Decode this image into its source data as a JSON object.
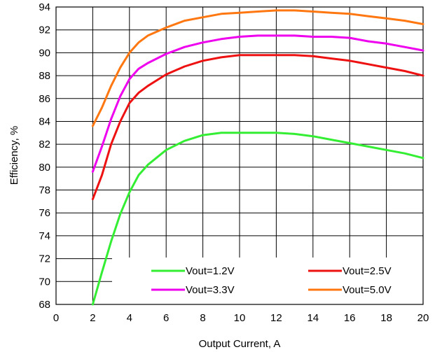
{
  "chart_data": {
    "type": "line",
    "xlabel": "Output Current, A",
    "ylabel": "Efficiency, %",
    "xlim": [
      0,
      20
    ],
    "ylim": [
      68,
      94
    ],
    "x_ticks": [
      "0",
      "2",
      "4",
      "6",
      "8",
      "10",
      "12",
      "14",
      "16",
      "18",
      "20"
    ],
    "y_ticks": [
      "68",
      "70",
      "72",
      "74",
      "76",
      "78",
      "80",
      "82",
      "84",
      "86",
      "88",
      "90",
      "92",
      "94"
    ],
    "grid": true,
    "legend_position": "bottom-right",
    "series": [
      {
        "name": "Vout=1.2V",
        "color": "#33ee33",
        "x": [
          2,
          2.5,
          3,
          3.5,
          4,
          4.5,
          5,
          6,
          7,
          8,
          9,
          10,
          11,
          12,
          13,
          14,
          15,
          16,
          17,
          18,
          19,
          20
        ],
        "y": [
          68.0,
          70.8,
          73.5,
          75.9,
          77.8,
          79.3,
          80.2,
          81.5,
          82.3,
          82.8,
          83.0,
          83.0,
          83.0,
          83.0,
          82.9,
          82.7,
          82.4,
          82.1,
          81.8,
          81.5,
          81.2,
          80.8
        ]
      },
      {
        "name": "Vout=2.5V",
        "color": "#ee1111",
        "x": [
          2,
          2.5,
          3,
          3.5,
          4,
          4.5,
          5,
          6,
          7,
          8,
          9,
          10,
          11,
          12,
          13,
          14,
          15,
          16,
          17,
          18,
          19,
          20
        ],
        "y": [
          77.2,
          79.3,
          82.0,
          84.0,
          85.6,
          86.5,
          87.1,
          88.1,
          88.8,
          89.3,
          89.6,
          89.8,
          89.8,
          89.8,
          89.8,
          89.7,
          89.5,
          89.3,
          89.0,
          88.7,
          88.4,
          88.0
        ]
      },
      {
        "name": "Vout=3.3V",
        "color": "#ee00ee",
        "x": [
          2,
          2.5,
          3,
          3.5,
          4,
          4.5,
          5,
          6,
          7,
          8,
          9,
          10,
          11,
          12,
          13,
          14,
          15,
          16,
          17,
          18,
          19,
          20
        ],
        "y": [
          79.6,
          81.8,
          84.2,
          86.2,
          87.7,
          88.6,
          89.1,
          89.9,
          90.5,
          90.9,
          91.2,
          91.4,
          91.5,
          91.5,
          91.5,
          91.4,
          91.4,
          91.3,
          91.0,
          90.8,
          90.5,
          90.2
        ]
      },
      {
        "name": "Vout=5.0V",
        "color": "#ff7711",
        "x": [
          2,
          2.5,
          3,
          3.5,
          4,
          4.5,
          5,
          6,
          7,
          8,
          9,
          10,
          11,
          12,
          13,
          14,
          15,
          16,
          17,
          18,
          19,
          20
        ],
        "y": [
          83.6,
          85.2,
          87.1,
          88.7,
          90.0,
          90.9,
          91.5,
          92.2,
          92.8,
          93.1,
          93.4,
          93.5,
          93.6,
          93.7,
          93.7,
          93.6,
          93.5,
          93.4,
          93.2,
          93.0,
          92.8,
          92.5
        ]
      }
    ]
  }
}
